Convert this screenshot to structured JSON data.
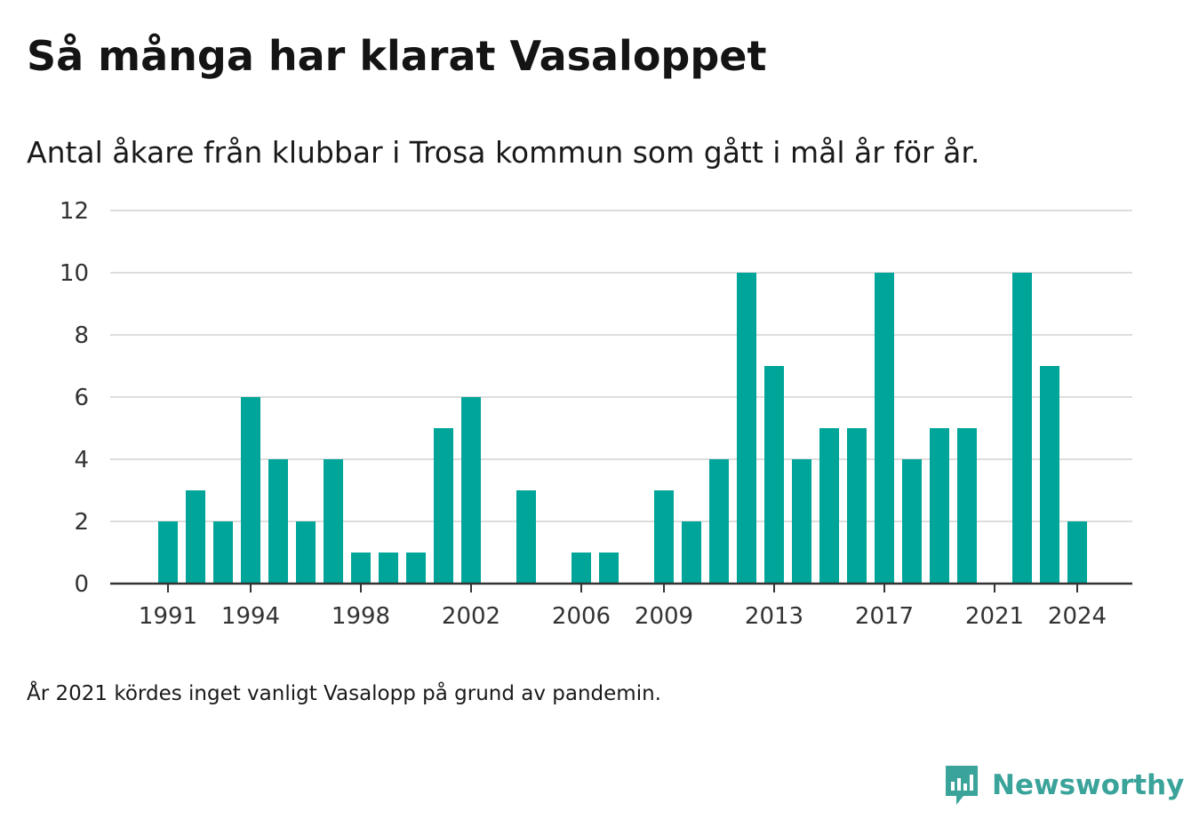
{
  "chart_data": {
    "type": "bar",
    "title": "Så många har klarat Vasaloppet",
    "subtitle": "Antal åkare från klubbar i Trosa kommun som gått i mål år för år.",
    "categories": [
      1991,
      1992,
      1993,
      1994,
      1995,
      1996,
      1997,
      1998,
      1999,
      2000,
      2001,
      2002,
      2003,
      2004,
      2005,
      2006,
      2007,
      2008,
      2009,
      2010,
      2011,
      2012,
      2013,
      2014,
      2015,
      2016,
      2017,
      2018,
      2019,
      2020,
      2021,
      2022,
      2023,
      2024
    ],
    "values": [
      2,
      3,
      2,
      6,
      4,
      2,
      4,
      1,
      1,
      1,
      5,
      6,
      0,
      3,
      0,
      1,
      1,
      0,
      3,
      2,
      4,
      10,
      7,
      4,
      5,
      5,
      10,
      4,
      5,
      5,
      0,
      10,
      7,
      2
    ],
    "x_tick_labels": [
      "1991",
      "1994",
      "1998",
      "2002",
      "2006",
      "2009",
      "2013",
      "2017",
      "2021",
      "2024"
    ],
    "y_ticks": [
      0,
      2,
      4,
      6,
      8,
      10,
      12
    ],
    "ylim": [
      0,
      12
    ],
    "xlabel": "",
    "ylabel": "",
    "grid": true,
    "legend": "none",
    "bar_color": "#00a59a",
    "footnote": "År 2021 kördes inget vanligt Vasalopp på grund av pandemin."
  },
  "brand": {
    "name": "Newsworthy",
    "logo_icon": "bar-chart-speech-bubble-icon",
    "color": "#3aa39a"
  }
}
